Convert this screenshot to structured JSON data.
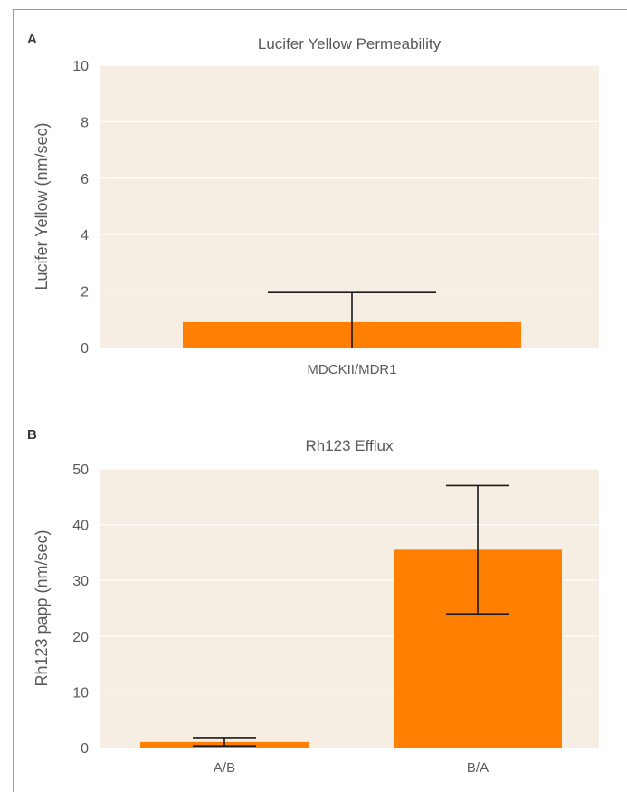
{
  "chart_data": [
    {
      "panel": "A",
      "type": "bar",
      "title": "Lucifer Yellow Permeability",
      "ylabel": "Lucifer Yellow (nm/sec)",
      "xlabel": "",
      "ylim": [
        0,
        10
      ],
      "yticks": [
        0,
        2,
        4,
        6,
        8,
        10
      ],
      "categories": [
        "MDCKII/MDR1"
      ],
      "values": [
        0.9
      ],
      "error_low": [
        0.0
      ],
      "error_high": [
        1.95
      ],
      "grid": true,
      "bar_color": "#FF8000",
      "background_color": "#F6EEE2"
    },
    {
      "panel": "B",
      "type": "bar",
      "title": "Rh123 Efflux",
      "ylabel": "Rh123 papp (nm/sec)",
      "xlabel": "",
      "ylim": [
        0,
        50
      ],
      "yticks": [
        0,
        10,
        20,
        30,
        40,
        50
      ],
      "categories": [
        "A/B",
        "B/A"
      ],
      "values": [
        1.0,
        35.5
      ],
      "error_low": [
        0.3,
        24.0
      ],
      "error_high": [
        1.8,
        47.0
      ],
      "grid": true,
      "bar_color": "#FF8000",
      "background_color": "#F6EEE2"
    }
  ]
}
